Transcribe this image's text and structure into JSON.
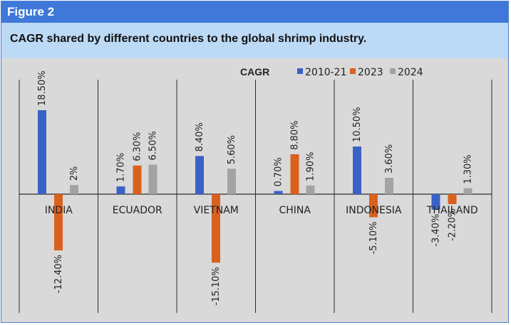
{
  "figure": {
    "label": "Figure 2",
    "title": "CAGR shared by different countries to the global shrimp industry."
  },
  "chart_data": {
    "type": "bar",
    "title": "CAGR",
    "categories": [
      "INDIA",
      "ECUADOR",
      "VIETNAM",
      "CHINA",
      "INDONESIA",
      "THAILAND"
    ],
    "series": [
      {
        "name": "2010-21",
        "color": "#3a62c6",
        "values": [
          18.5,
          1.7,
          8.4,
          0.7,
          10.5,
          -3.4
        ],
        "labels": [
          "18.50%",
          "1.70%",
          "8.40%",
          "0.70%",
          "10.50%",
          "-3.40%"
        ]
      },
      {
        "name": "2023",
        "color": "#d9611f",
        "values": [
          -12.4,
          6.3,
          -15.1,
          8.8,
          -5.1,
          -2.2
        ],
        "labels": [
          "-12.40%",
          "6.30%",
          "-15.10%",
          "8.80%",
          "-5.10%",
          "-2.20%"
        ]
      },
      {
        "name": "2024",
        "color": "#a3a3a3",
        "values": [
          2,
          6.5,
          5.6,
          1.9,
          3.6,
          1.3
        ],
        "labels": [
          "2%",
          "6.50%",
          "5.60%",
          "1.90%",
          "3.60%",
          "1.30%"
        ]
      }
    ],
    "ylabel": "",
    "xlabel": "",
    "ylim": [
      -17,
      20
    ],
    "legend_position": "top-right"
  }
}
